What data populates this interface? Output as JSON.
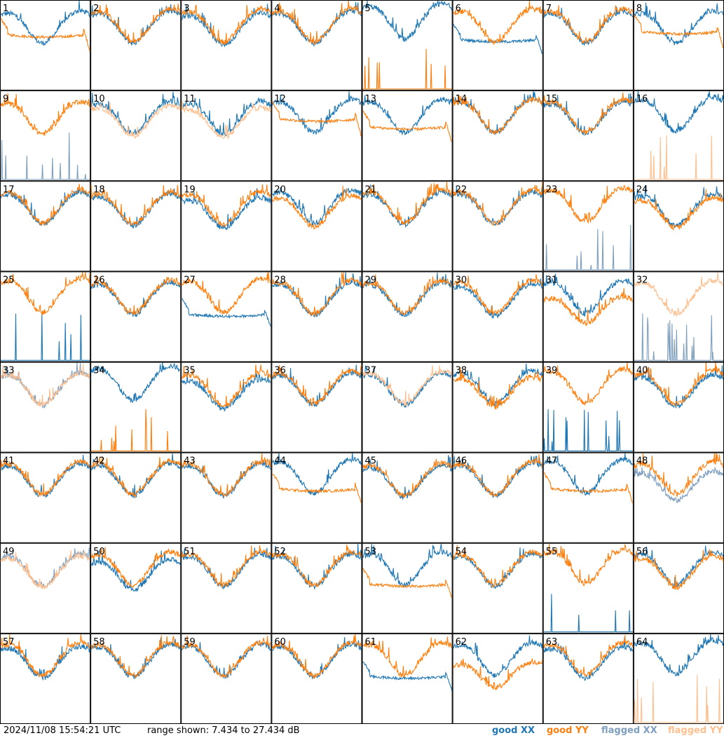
{
  "footer": {
    "timestamp": "2024/11/08 15:54:21 UTC",
    "range_text": "range shown: 7.434 to 27.434 dB"
  },
  "legend": [
    {
      "label": "good XX",
      "color": "#1f77b4"
    },
    {
      "label": "good YY",
      "color": "#ff7f0e"
    },
    {
      "label": "flagged XX",
      "color": "#7f9fbf"
    },
    {
      "label": "flagged YY",
      "color": "#ffbf8f"
    }
  ],
  "chart_data": {
    "type": "line",
    "title": "",
    "grid_rows": 8,
    "grid_cols": 8,
    "ylim": [
      7.434,
      27.434
    ],
    "ylabel": "",
    "xlabel": "",
    "colors": {
      "good_xx": "#1f77b4",
      "good_yy": "#ff7f0e",
      "flagged_xx": "#7f9fbf",
      "flagged_yy": "#ffbf8f"
    },
    "panels": [
      {
        "label": "1",
        "xx": "good",
        "yy": "good",
        "pattern": "bandpass",
        "xx_level": 0.78,
        "yy_level": 0.68
      },
      {
        "label": "2",
        "xx": "good",
        "yy": "good",
        "pattern": "normal",
        "xx_level": 0.78,
        "yy_level": 0.8
      },
      {
        "label": "3",
        "xx": "good",
        "yy": "good",
        "pattern": "normal",
        "xx_level": 0.76,
        "yy_level": 0.8
      },
      {
        "label": "4",
        "xx": "good",
        "yy": "good",
        "pattern": "normal",
        "xx_level": 0.78,
        "yy_level": 0.8
      },
      {
        "label": "5",
        "xx": "good",
        "yy": "good",
        "pattern": "spikes_yy",
        "xx_level": 0.85,
        "yy_level": 0.0
      },
      {
        "label": "6",
        "xx": "good",
        "yy": "good",
        "pattern": "bandpass_xx",
        "xx_level": 0.62,
        "yy_level": 0.8
      },
      {
        "label": "7",
        "xx": "good",
        "yy": "good",
        "pattern": "normal",
        "xx_level": 0.78,
        "yy_level": 0.8
      },
      {
        "label": "8",
        "xx": "good",
        "yy": "good",
        "pattern": "bandpass",
        "xx_level": 0.78,
        "yy_level": 0.72
      },
      {
        "label": "9",
        "xx": "flagged",
        "yy": "good",
        "pattern": "spikes_xx",
        "xx_level": 0.0,
        "yy_level": 0.78
      },
      {
        "label": "10",
        "xx": "good",
        "yy": "flagged",
        "pattern": "normal",
        "xx_level": 0.78,
        "yy_level": 0.74
      },
      {
        "label": "11",
        "xx": "good",
        "yy": "flagged",
        "pattern": "normal",
        "xx_level": 0.78,
        "yy_level": 0.72
      },
      {
        "label": "12",
        "xx": "good",
        "yy": "good",
        "pattern": "bandpass",
        "xx_level": 0.8,
        "yy_level": 0.76
      },
      {
        "label": "13",
        "xx": "good",
        "yy": "good",
        "pattern": "bandpass",
        "xx_level": 0.8,
        "yy_level": 0.66
      },
      {
        "label": "14",
        "xx": "good",
        "yy": "good",
        "pattern": "normal",
        "xx_level": 0.8,
        "yy_level": 0.8
      },
      {
        "label": "15",
        "xx": "good",
        "yy": "good",
        "pattern": "normal",
        "xx_level": 0.78,
        "yy_level": 0.8
      },
      {
        "label": "16",
        "xx": "good",
        "yy": "flagged",
        "pattern": "spikes_yy",
        "xx_level": 0.82,
        "yy_level": 0.0
      },
      {
        "label": "17",
        "xx": "good",
        "yy": "good",
        "pattern": "normal",
        "xx_level": 0.78,
        "yy_level": 0.8
      },
      {
        "label": "18",
        "xx": "good",
        "yy": "good",
        "pattern": "normal",
        "xx_level": 0.76,
        "yy_level": 0.78
      },
      {
        "label": "19",
        "xx": "good",
        "yy": "good",
        "pattern": "normal",
        "xx_level": 0.72,
        "yy_level": 0.78
      },
      {
        "label": "20",
        "xx": "good",
        "yy": "good",
        "pattern": "normal",
        "xx_level": 0.8,
        "yy_level": 0.74
      },
      {
        "label": "21",
        "xx": "good",
        "yy": "good",
        "pattern": "normal",
        "xx_level": 0.78,
        "yy_level": 0.8
      },
      {
        "label": "22",
        "xx": "good",
        "yy": "good",
        "pattern": "normal",
        "xx_level": 0.78,
        "yy_level": 0.8
      },
      {
        "label": "23",
        "xx": "flagged",
        "yy": "good",
        "pattern": "spikes_xx",
        "xx_level": 0.0,
        "yy_level": 0.82
      },
      {
        "label": "24",
        "xx": "good",
        "yy": "good",
        "pattern": "normal",
        "xx_level": 0.76,
        "yy_level": 0.72
      },
      {
        "label": "25",
        "xx": "good",
        "yy": "good",
        "pattern": "spikes_xx",
        "xx_level": 0.0,
        "yy_level": 0.82
      },
      {
        "label": "26",
        "xx": "good",
        "yy": "good",
        "pattern": "normal",
        "xx_level": 0.78,
        "yy_level": 0.8
      },
      {
        "label": "27",
        "xx": "good",
        "yy": "good",
        "pattern": "bandpass_xx",
        "xx_level": 0.58,
        "yy_level": 0.82
      },
      {
        "label": "28",
        "xx": "good",
        "yy": "good",
        "pattern": "normal",
        "xx_level": 0.78,
        "yy_level": 0.8
      },
      {
        "label": "29",
        "xx": "good",
        "yy": "good",
        "pattern": "normal",
        "xx_level": 0.78,
        "yy_level": 0.8
      },
      {
        "label": "30",
        "xx": "good",
        "yy": "good",
        "pattern": "normal",
        "xx_level": 0.76,
        "yy_level": 0.8
      },
      {
        "label": "31",
        "xx": "good",
        "yy": "good",
        "pattern": "normal",
        "xx_level": 0.8,
        "yy_level": 0.64
      },
      {
        "label": "32",
        "xx": "flagged",
        "yy": "flagged",
        "pattern": "flagged_noisy",
        "xx_level": 0.0,
        "yy_level": 0.8
      },
      {
        "label": "33",
        "xx": "flagged",
        "yy": "flagged",
        "pattern": "normal",
        "xx_level": 0.78,
        "yy_level": 0.78
      },
      {
        "label": "34",
        "xx": "good",
        "yy": "good",
        "pattern": "spikes_yy",
        "xx_level": 0.85,
        "yy_level": 0.0
      },
      {
        "label": "35",
        "xx": "good",
        "yy": "good",
        "pattern": "normal",
        "xx_level": 0.72,
        "yy_level": 0.78
      },
      {
        "label": "36",
        "xx": "good",
        "yy": "good",
        "pattern": "normal",
        "xx_level": 0.78,
        "yy_level": 0.8
      },
      {
        "label": "37",
        "xx": "good",
        "yy": "flagged",
        "pattern": "normal",
        "xx_level": 0.78,
        "yy_level": 0.8
      },
      {
        "label": "38",
        "xx": "good",
        "yy": "good",
        "pattern": "normal",
        "xx_level": 0.8,
        "yy_level": 0.74
      },
      {
        "label": "39",
        "xx": "good",
        "yy": "good",
        "pattern": "spikes_xx",
        "xx_level": 0.0,
        "yy_level": 0.82
      },
      {
        "label": "40",
        "xx": "good",
        "yy": "good",
        "pattern": "normal",
        "xx_level": 0.76,
        "yy_level": 0.8
      },
      {
        "label": "41",
        "xx": "good",
        "yy": "good",
        "pattern": "normal",
        "xx_level": 0.78,
        "yy_level": 0.8
      },
      {
        "label": "42",
        "xx": "good",
        "yy": "good",
        "pattern": "normal",
        "xx_level": 0.78,
        "yy_level": 0.8
      },
      {
        "label": "43",
        "xx": "good",
        "yy": "good",
        "pattern": "normal",
        "xx_level": 0.78,
        "yy_level": 0.8
      },
      {
        "label": "44",
        "xx": "good",
        "yy": "good",
        "pattern": "bandpass",
        "xx_level": 0.82,
        "yy_level": 0.66
      },
      {
        "label": "45",
        "xx": "good",
        "yy": "good",
        "pattern": "normal",
        "xx_level": 0.76,
        "yy_level": 0.78
      },
      {
        "label": "46",
        "xx": "good",
        "yy": "good",
        "pattern": "normal",
        "xx_level": 0.78,
        "yy_level": 0.8
      },
      {
        "label": "47",
        "xx": "good",
        "yy": "good",
        "pattern": "bandpass",
        "xx_level": 0.82,
        "yy_level": 0.66
      },
      {
        "label": "48",
        "xx": "flagged",
        "yy": "good",
        "pattern": "normal",
        "xx_level": 0.7,
        "yy_level": 0.8
      },
      {
        "label": "49",
        "xx": "flagged",
        "yy": "flagged",
        "pattern": "normal",
        "xx_level": 0.78,
        "yy_level": 0.76
      },
      {
        "label": "50",
        "xx": "good",
        "yy": "good",
        "pattern": "normal",
        "xx_level": 0.72,
        "yy_level": 0.8
      },
      {
        "label": "51",
        "xx": "good",
        "yy": "good",
        "pattern": "normal",
        "xx_level": 0.78,
        "yy_level": 0.8
      },
      {
        "label": "52",
        "xx": "good",
        "yy": "good",
        "pattern": "normal",
        "xx_level": 0.78,
        "yy_level": 0.8
      },
      {
        "label": "53",
        "xx": "good",
        "yy": "good",
        "pattern": "bandpass",
        "xx_level": 0.8,
        "yy_level": 0.6
      },
      {
        "label": "54",
        "xx": "good",
        "yy": "good",
        "pattern": "normal",
        "xx_level": 0.78,
        "yy_level": 0.8
      },
      {
        "label": "55",
        "xx": "good",
        "yy": "good",
        "pattern": "spikes_xx",
        "xx_level": 0.0,
        "yy_level": 0.82
      },
      {
        "label": "56",
        "xx": "good",
        "yy": "good",
        "pattern": "normal",
        "xx_level": 0.8,
        "yy_level": 0.76
      },
      {
        "label": "57",
        "xx": "good",
        "yy": "good",
        "pattern": "normal",
        "xx_level": 0.76,
        "yy_level": 0.8
      },
      {
        "label": "58",
        "xx": "good",
        "yy": "good",
        "pattern": "normal",
        "xx_level": 0.78,
        "yy_level": 0.8
      },
      {
        "label": "59",
        "xx": "good",
        "yy": "good",
        "pattern": "normal",
        "xx_level": 0.78,
        "yy_level": 0.8
      },
      {
        "label": "60",
        "xx": "good",
        "yy": "good",
        "pattern": "normal",
        "xx_level": 0.78,
        "yy_level": 0.8
      },
      {
        "label": "61",
        "xx": "good",
        "yy": "good",
        "pattern": "bandpass_xx",
        "xx_level": 0.58,
        "yy_level": 0.8
      },
      {
        "label": "62",
        "xx": "good",
        "yy": "good",
        "pattern": "normal",
        "xx_level": 0.8,
        "yy_level": 0.6
      },
      {
        "label": "63",
        "xx": "good",
        "yy": "good",
        "pattern": "normal",
        "xx_level": 0.76,
        "yy_level": 0.8
      },
      {
        "label": "64",
        "xx": "good",
        "yy": "flagged",
        "pattern": "spikes_yy",
        "xx_level": 0.82,
        "yy_level": 0.0
      }
    ]
  }
}
